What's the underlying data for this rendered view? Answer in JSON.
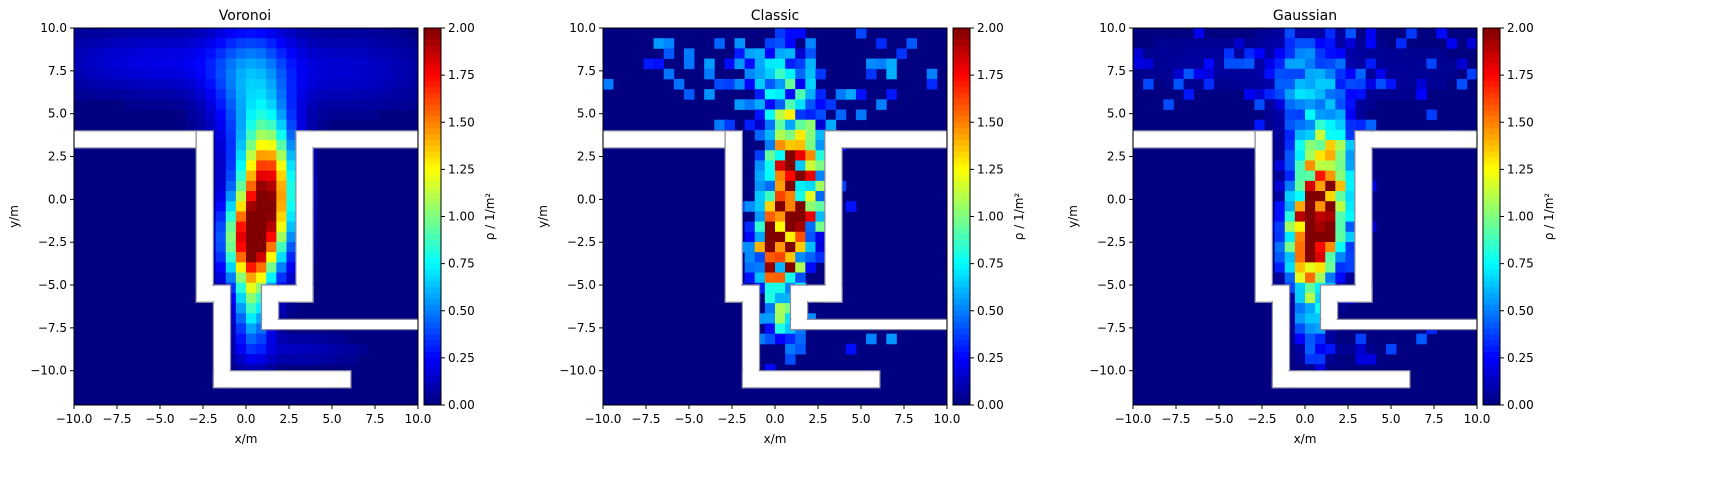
{
  "chart_data": [
    {
      "type": "heatmap",
      "title": "Voronoi",
      "xlabel": "x/m",
      "ylabel": "y/m",
      "xlim": [
        -10,
        10
      ],
      "ylim": [
        -12,
        10
      ],
      "xticks": [
        "−10.0",
        "−7.5",
        "−5.0",
        "−2.5",
        "0.0",
        "2.5",
        "5.0",
        "7.5",
        "10.0"
      ],
      "yticks": [
        "10.0",
        "7.5",
        "5.0",
        "2.5",
        "0.0",
        "−2.5",
        "−5.0",
        "−7.5",
        "−10.0"
      ],
      "style": "smooth",
      "colorbar": {
        "label": "ρ / 1/m²",
        "range": [
          0,
          2
        ],
        "ticks": [
          "2.00",
          "1.75",
          "1.50",
          "1.25",
          "1.00",
          "0.75",
          "0.50",
          "0.25",
          "0.00"
        ]
      }
    },
    {
      "type": "heatmap",
      "title": "Classic",
      "xlabel": "x/m",
      "ylabel": "y/m",
      "xlim": [
        -10,
        10
      ],
      "ylim": [
        -12,
        10
      ],
      "xticks": [
        "−10.0",
        "−7.5",
        "−5.0",
        "−2.5",
        "0.0",
        "2.5",
        "5.0",
        "7.5",
        "10.0"
      ],
      "yticks": [
        "10.0",
        "7.5",
        "5.0",
        "2.5",
        "0.0",
        "−2.5",
        "−5.0",
        "−7.5",
        "−10.0"
      ],
      "style": "noisy",
      "colorbar": {
        "label": "ρ / 1/m²",
        "range": [
          0,
          2
        ],
        "ticks": [
          "2.00",
          "1.75",
          "1.50",
          "1.25",
          "1.00",
          "0.75",
          "0.50",
          "0.25",
          "0.00"
        ]
      }
    },
    {
      "type": "heatmap",
      "title": "Gaussian",
      "xlabel": "x/m",
      "ylabel": "y/m",
      "xlim": [
        -10,
        10
      ],
      "ylim": [
        -12,
        10
      ],
      "xticks": [
        "−10.0",
        "−7.5",
        "−5.0",
        "−2.5",
        "0.0",
        "2.5",
        "5.0",
        "7.5",
        "10.0"
      ],
      "yticks": [
        "10.0",
        "7.5",
        "5.0",
        "2.5",
        "0.0",
        "−2.5",
        "−5.0",
        "−7.5",
        "−10.0"
      ],
      "style": "medium",
      "colorbar": {
        "label": "ρ / 1/m²",
        "range": [
          0,
          2
        ],
        "ticks": [
          "2.00",
          "1.75",
          "1.50",
          "1.25",
          "1.00",
          "0.75",
          "0.50",
          "0.25",
          "0.00"
        ]
      }
    }
  ],
  "colors": {
    "background": "#000080",
    "wall": "#ffffff",
    "wall_edge": "#8a8aa0",
    "colormap": "jet"
  }
}
